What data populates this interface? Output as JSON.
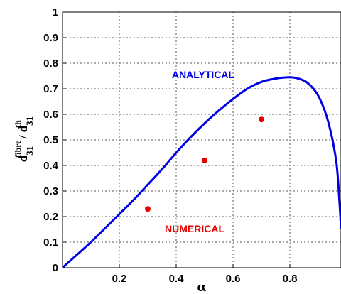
{
  "chart_data": {
    "type": "line",
    "xlabel": "α",
    "ylabel": {
      "parts": [
        "d",
        "31",
        "fibre",
        "/ d",
        "31",
        "th"
      ]
    },
    "xlim": [
      0,
      0.98
    ],
    "ylim": [
      0,
      1
    ],
    "xticks": [
      0.2,
      0.4,
      0.6,
      0.8
    ],
    "xtick_labels": [
      "0.2",
      "0.4",
      "0.6",
      "0.8"
    ],
    "yticks": [
      0,
      0.1,
      0.2,
      0.3,
      0.4,
      0.5,
      0.6,
      0.7,
      0.8,
      0.9,
      1
    ],
    "ytick_labels": [
      "0",
      "0.1",
      "0.2",
      "0.3",
      "0.4",
      "0.5",
      "0.6",
      "0.7",
      "0.8",
      "0.9",
      "1"
    ],
    "grid": true,
    "series": [
      {
        "name": "ANALYTICAL",
        "kind": "line",
        "color": "#0000e6",
        "x": [
          0,
          0.05,
          0.1,
          0.15,
          0.2,
          0.25,
          0.3,
          0.35,
          0.4,
          0.45,
          0.5,
          0.55,
          0.6,
          0.65,
          0.7,
          0.75,
          0.8,
          0.83,
          0.86,
          0.89,
          0.91,
          0.93,
          0.95,
          0.965,
          0.975,
          0.98
        ],
        "y": [
          0,
          0.05,
          0.1,
          0.155,
          0.21,
          0.265,
          0.325,
          0.385,
          0.45,
          0.51,
          0.565,
          0.615,
          0.66,
          0.7,
          0.727,
          0.74,
          0.745,
          0.74,
          0.725,
          0.69,
          0.65,
          0.59,
          0.5,
          0.4,
          0.25,
          0.15
        ]
      },
      {
        "name": "NUMERICAL",
        "kind": "scatter",
        "color": "#e60000",
        "x": [
          0.3,
          0.5,
          0.7
        ],
        "y": [
          0.23,
          0.42,
          0.58
        ]
      }
    ]
  }
}
